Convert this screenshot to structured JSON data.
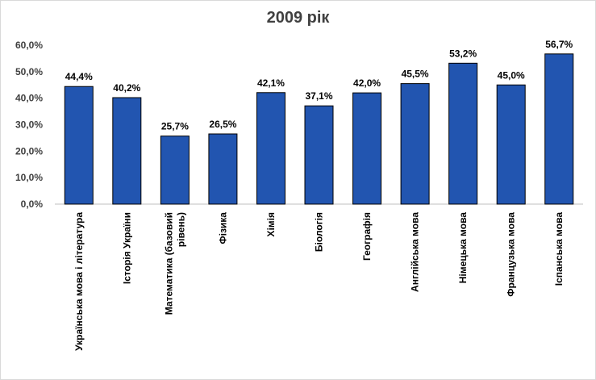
{
  "chart_data": {
    "type": "bar",
    "title": "2009 рік",
    "xlabel": "",
    "ylabel": "",
    "ylim": [
      0,
      60
    ],
    "yticks": [
      "0,0%",
      "10,0%",
      "20,0%",
      "30,0%",
      "40,0%",
      "50,0%",
      "60,0%"
    ],
    "grid": false,
    "bar_color": "#2255b0",
    "categories": [
      [
        "Українська мова і література"
      ],
      [
        "Історія України"
      ],
      [
        "Математика (базовий",
        "рівень)"
      ],
      [
        "Фізика"
      ],
      [
        "Хімія"
      ],
      [
        "Біологія"
      ],
      [
        "Географія"
      ],
      [
        "Англійська мова"
      ],
      [
        "Німецька мова"
      ],
      [
        "Французька мова"
      ],
      [
        "Іспанська мова"
      ]
    ],
    "values": [
      44.4,
      40.2,
      25.7,
      26.5,
      42.1,
      37.1,
      42.0,
      45.5,
      53.2,
      45.0,
      56.7
    ],
    "data_labels": [
      "44,4%",
      "40,2%",
      "25,7%",
      "26,5%",
      "42,1%",
      "37,1%",
      "42,0%",
      "45,5%",
      "53,2%",
      "45,0%",
      "56,7%"
    ]
  }
}
